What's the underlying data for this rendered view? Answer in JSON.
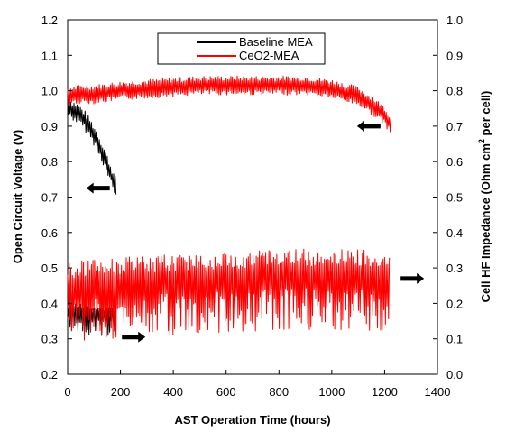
{
  "chart_data": {
    "type": "line",
    "xlabel": "AST Operation Time (hours)",
    "ylabel_left": "Open Circuit Voltage (V)",
    "ylabel_right_prefix": "Cell HF Impedance (Ohm cm",
    "ylabel_right_sup": "2",
    "ylabel_right_suffix": " per cell)",
    "xlim": [
      0,
      1400
    ],
    "ylim_left": [
      0.2,
      1.2
    ],
    "ylim_right": [
      0.0,
      1.0
    ],
    "x_ticks": [
      "0",
      "200",
      "400",
      "600",
      "800",
      "1000",
      "1200",
      "1400"
    ],
    "y_left_ticks": [
      "0.2",
      "0.3",
      "0.4",
      "0.5",
      "0.6",
      "0.7",
      "0.8",
      "0.9",
      "1.0",
      "1.1",
      "1.2"
    ],
    "y_right_ticks": [
      "0.0",
      "0.1",
      "0.2",
      "0.3",
      "0.4",
      "0.5",
      "0.6",
      "0.7",
      "0.8",
      "0.9",
      "1.0"
    ],
    "grid": false,
    "legend_position": "top-center",
    "series": [
      {
        "name": "Baseline MEA",
        "color": "#000000",
        "axis": "left",
        "metric": "ocv",
        "x": [
          0,
          20,
          40,
          60,
          80,
          100,
          120,
          140,
          160,
          175,
          185
        ],
        "y": [
          0.955,
          0.945,
          0.935,
          0.92,
          0.9,
          0.875,
          0.845,
          0.81,
          0.77,
          0.74,
          0.72
        ]
      },
      {
        "name": "CeO2-MEA",
        "color": "#ff0000",
        "axis": "left",
        "metric": "ocv",
        "x": [
          0,
          50,
          100,
          200,
          300,
          400,
          500,
          600,
          700,
          800,
          900,
          1000,
          1100,
          1150,
          1200,
          1225
        ],
        "y": [
          0.985,
          0.99,
          0.99,
          1.0,
          1.005,
          1.01,
          1.015,
          1.015,
          1.015,
          1.015,
          1.015,
          1.005,
          0.985,
          0.96,
          0.93,
          0.9
        ]
      },
      {
        "name": "Baseline MEA",
        "color": "#000000",
        "axis": "right",
        "metric": "hfr",
        "x": [
          0,
          30,
          60,
          90,
          120,
          150,
          180
        ],
        "y": [
          0.18,
          0.175,
          0.17,
          0.17,
          0.165,
          0.165,
          0.165
        ]
      },
      {
        "name": "CeO2-MEA",
        "color": "#ff0000",
        "axis": "right",
        "metric": "hfr",
        "x": [
          0,
          100,
          200,
          300,
          400,
          500,
          600,
          700,
          800,
          900,
          1000,
          1100,
          1220
        ],
        "y": [
          0.23,
          0.235,
          0.24,
          0.245,
          0.25,
          0.255,
          0.255,
          0.26,
          0.265,
          0.265,
          0.265,
          0.265,
          0.26
        ]
      }
    ],
    "annotations": [
      {
        "type": "arrow",
        "direction": "left",
        "x": 1140,
        "y_axis": "left",
        "y": 0.9
      },
      {
        "type": "arrow",
        "direction": "left",
        "x": 115,
        "y_axis": "left",
        "y": 0.725
      },
      {
        "type": "arrow",
        "direction": "right",
        "x": 250,
        "y_axis": "left",
        "y": 0.305
      },
      {
        "type": "arrow",
        "direction": "right",
        "x": 1305,
        "y_axis": "left",
        "y": 0.47
      }
    ]
  }
}
